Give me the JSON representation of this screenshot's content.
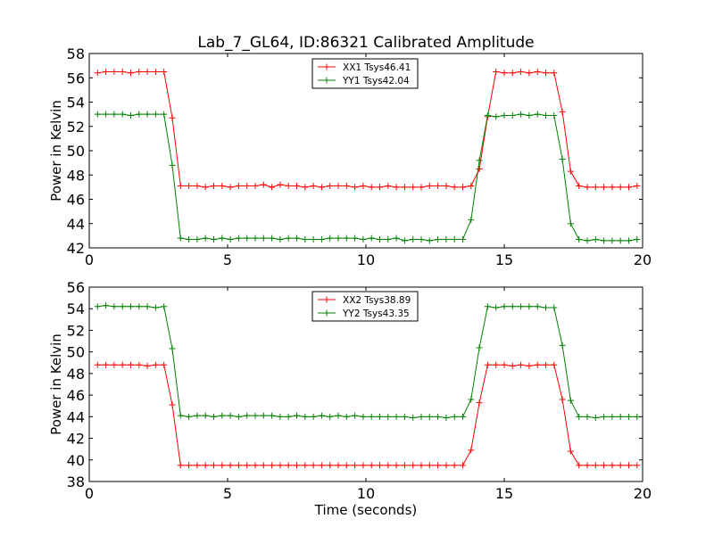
{
  "figure": {
    "title": "Lab_7_GL64, ID:86321 Calibrated Amplitude",
    "background": "#ffffff"
  },
  "chart_data": [
    {
      "type": "line",
      "title": "Lab_7_GL64, ID:86321 Calibrated Amplitude",
      "xlabel": "",
      "ylabel": "Power in Kelvin",
      "xlim": [
        0,
        20
      ],
      "ylim": [
        42,
        58
      ],
      "xticks": [
        0,
        5,
        10,
        15,
        20
      ],
      "yticks": [
        42,
        44,
        46,
        48,
        50,
        52,
        54,
        56,
        58
      ],
      "grid": false,
      "legend_position": "top-center",
      "x": [
        0.3,
        0.6,
        0.9,
        1.2,
        1.5,
        1.8,
        2.1,
        2.4,
        2.7,
        3.0,
        3.3,
        3.6,
        3.9,
        4.2,
        4.5,
        4.8,
        5.1,
        5.4,
        5.7,
        6.0,
        6.3,
        6.6,
        6.9,
        7.2,
        7.5,
        7.8,
        8.1,
        8.4,
        8.7,
        9.0,
        9.3,
        9.6,
        9.9,
        10.2,
        10.5,
        10.8,
        11.1,
        11.4,
        11.7,
        12.0,
        12.3,
        12.6,
        12.9,
        13.2,
        13.5,
        13.8,
        14.1,
        14.4,
        14.7,
        15.0,
        15.3,
        15.6,
        15.9,
        16.2,
        16.5,
        16.8,
        17.1,
        17.4,
        17.7,
        18.0,
        18.3,
        18.6,
        18.9,
        19.2,
        19.5,
        19.8
      ],
      "series": [
        {
          "name": "XX1 Tsys46.41",
          "color": "#ff0000",
          "values": [
            56.4,
            56.5,
            56.5,
            56.5,
            56.4,
            56.5,
            56.5,
            56.5,
            56.5,
            52.7,
            47.1,
            47.1,
            47.1,
            47.0,
            47.1,
            47.1,
            47.0,
            47.1,
            47.1,
            47.1,
            47.2,
            47.0,
            47.2,
            47.1,
            47.1,
            47.0,
            47.1,
            47.0,
            47.1,
            47.1,
            47.1,
            47.0,
            47.1,
            47.0,
            47.0,
            47.1,
            47.0,
            47.0,
            47.0,
            47.0,
            47.1,
            47.1,
            47.1,
            47.0,
            47.0,
            47.1,
            48.5,
            52.8,
            56.5,
            56.4,
            56.4,
            56.5,
            56.4,
            56.5,
            56.4,
            56.4,
            53.2,
            48.3,
            47.1,
            47.0,
            47.0,
            47.0,
            47.0,
            47.0,
            47.0,
            47.1
          ],
          "marker": "+"
        },
        {
          "name": "YY1 Tsys42.04",
          "color": "#008000",
          "values": [
            53.0,
            53.0,
            53.0,
            53.0,
            52.9,
            53.0,
            53.0,
            53.0,
            53.0,
            48.8,
            42.8,
            42.7,
            42.7,
            42.8,
            42.7,
            42.8,
            42.7,
            42.8,
            42.8,
            42.8,
            42.8,
            42.8,
            42.7,
            42.8,
            42.8,
            42.7,
            42.7,
            42.7,
            42.8,
            42.8,
            42.8,
            42.8,
            42.7,
            42.8,
            42.7,
            42.7,
            42.8,
            42.6,
            42.7,
            42.7,
            42.6,
            42.7,
            42.7,
            42.7,
            42.7,
            44.3,
            49.2,
            52.9,
            52.8,
            52.9,
            52.9,
            53.0,
            52.9,
            53.0,
            52.9,
            52.9,
            49.3,
            44.0,
            42.7,
            42.6,
            42.7,
            42.6,
            42.6,
            42.6,
            42.6,
            42.7
          ],
          "marker": "+"
        }
      ]
    },
    {
      "type": "line",
      "title": "",
      "xlabel": "Time (seconds)",
      "ylabel": "Power in Kelvin",
      "xlim": [
        0,
        20
      ],
      "ylim": [
        38,
        56
      ],
      "xticks": [
        0,
        5,
        10,
        15,
        20
      ],
      "yticks": [
        38,
        40,
        42,
        44,
        46,
        48,
        50,
        52,
        54,
        56
      ],
      "grid": false,
      "legend_position": "top-center",
      "x": [
        0.3,
        0.6,
        0.9,
        1.2,
        1.5,
        1.8,
        2.1,
        2.4,
        2.7,
        3.0,
        3.3,
        3.6,
        3.9,
        4.2,
        4.5,
        4.8,
        5.1,
        5.4,
        5.7,
        6.0,
        6.3,
        6.6,
        6.9,
        7.2,
        7.5,
        7.8,
        8.1,
        8.4,
        8.7,
        9.0,
        9.3,
        9.6,
        9.9,
        10.2,
        10.5,
        10.8,
        11.1,
        11.4,
        11.7,
        12.0,
        12.3,
        12.6,
        12.9,
        13.2,
        13.5,
        13.8,
        14.1,
        14.4,
        14.7,
        15.0,
        15.3,
        15.6,
        15.9,
        16.2,
        16.5,
        16.8,
        17.1,
        17.4,
        17.7,
        18.0,
        18.3,
        18.6,
        18.9,
        19.2,
        19.5,
        19.8
      ],
      "series": [
        {
          "name": "XX2 Tsys38.89",
          "color": "#ff0000",
          "values": [
            48.8,
            48.8,
            48.8,
            48.8,
            48.8,
            48.8,
            48.7,
            48.8,
            48.8,
            45.1,
            39.5,
            39.5,
            39.5,
            39.5,
            39.5,
            39.5,
            39.5,
            39.5,
            39.5,
            39.5,
            39.5,
            39.5,
            39.5,
            39.5,
            39.5,
            39.5,
            39.5,
            39.5,
            39.5,
            39.5,
            39.5,
            39.5,
            39.5,
            39.5,
            39.5,
            39.5,
            39.5,
            39.5,
            39.5,
            39.5,
            39.5,
            39.5,
            39.5,
            39.5,
            39.5,
            40.9,
            45.3,
            48.8,
            48.8,
            48.8,
            48.7,
            48.8,
            48.7,
            48.8,
            48.8,
            48.8,
            45.6,
            40.8,
            39.5,
            39.5,
            39.5,
            39.5,
            39.5,
            39.5,
            39.5,
            39.5
          ],
          "marker": "+"
        },
        {
          "name": "YY2 Tsys43.35",
          "color": "#008000",
          "values": [
            54.2,
            54.3,
            54.2,
            54.2,
            54.2,
            54.2,
            54.2,
            54.1,
            54.2,
            50.3,
            44.1,
            44.0,
            44.1,
            44.1,
            44.0,
            44.1,
            44.1,
            44.0,
            44.1,
            44.1,
            44.1,
            44.1,
            44.0,
            44.0,
            44.1,
            44.0,
            44.0,
            44.1,
            44.0,
            44.1,
            44.0,
            44.1,
            44.0,
            44.0,
            44.0,
            44.0,
            44.0,
            44.0,
            43.9,
            44.0,
            44.0,
            44.0,
            43.9,
            44.0,
            44.0,
            45.6,
            50.4,
            54.2,
            54.1,
            54.2,
            54.2,
            54.2,
            54.2,
            54.2,
            54.1,
            54.1,
            50.6,
            45.5,
            44.0,
            44.0,
            43.9,
            44.0,
            44.0,
            44.0,
            44.0,
            44.0
          ],
          "marker": "+"
        }
      ]
    }
  ]
}
